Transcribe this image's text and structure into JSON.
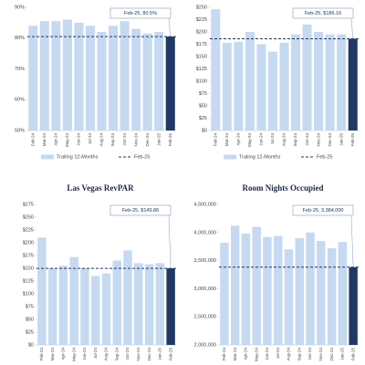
{
  "chart_data": [
    {
      "type": "bar",
      "categories": [
        "Feb-24",
        "Mar-24",
        "Apr-24",
        "May-24",
        "Jun-24",
        "Jul-24",
        "Aug-24",
        "Sep-24",
        "Oct-24",
        "Nov-24",
        "Dec-24",
        "Jan-25",
        "Feb-25"
      ],
      "series": [
        {
          "name": "Trailing 12-Months",
          "color": "#c5d9f1",
          "highlight_color": "#1f3864",
          "values": [
            84,
            85.5,
            85.5,
            86,
            85,
            84,
            82,
            84,
            85.5,
            83,
            81.5,
            82,
            80.5
          ]
        }
      ],
      "reference": {
        "name": "Feb-25",
        "value": 80.5,
        "color": "#1f3864"
      },
      "annotation": "Feb-25, 80.5%",
      "ylim": [
        50,
        90
      ],
      "yticks": [
        {
          "value": 50,
          "label": "50%"
        },
        {
          "value": 60,
          "label": "60%"
        },
        {
          "value": 70,
          "label": "70%"
        },
        {
          "value": 80,
          "label": "80%"
        },
        {
          "value": 90,
          "label": "90%"
        }
      ],
      "legend": true
    },
    {
      "type": "bar",
      "categories": [
        "Feb-24",
        "Mar-24",
        "Apr-24",
        "May-24",
        "Jun-24",
        "Jul-24",
        "Aug-24",
        "Sep-24",
        "Oct-24",
        "Nov-24",
        "Dec-24",
        "Jan-25",
        "Feb-25"
      ],
      "series": [
        {
          "name": "Trailing 12-Months",
          "color": "#c5d9f1",
          "highlight_color": "#1f3864",
          "values": [
            246,
            178,
            180,
            200,
            175,
            160,
            178,
            195,
            215,
            200,
            195,
            195,
            186.16
          ]
        }
      ],
      "reference": {
        "name": "Feb-25",
        "value": 186.16,
        "color": "#1f3864"
      },
      "annotation": "Feb-25, $186.16",
      "ylim": [
        0,
        250
      ],
      "yticks": [
        {
          "value": 0,
          "label": "$0"
        },
        {
          "value": 25,
          "label": "$25"
        },
        {
          "value": 50,
          "label": "$50"
        },
        {
          "value": 75,
          "label": "$75"
        },
        {
          "value": 100,
          "label": "$100"
        },
        {
          "value": 125,
          "label": "$125"
        },
        {
          "value": 150,
          "label": "$150"
        },
        {
          "value": 175,
          "label": "$175"
        },
        {
          "value": 200,
          "label": "$200"
        },
        {
          "value": 225,
          "label": "$225"
        },
        {
          "value": 250,
          "label": "$250"
        }
      ],
      "legend": true
    },
    {
      "type": "bar",
      "title": "Las Vegas RevPAR",
      "categories": [
        "Feb-24",
        "Mar-24",
        "Apr-24",
        "May-24",
        "Jun-24",
        "Jul-24",
        "Aug-24",
        "Sep-24",
        "Oct-24",
        "Nov-24",
        "Dec-24",
        "Jan-25",
        "Feb-25"
      ],
      "series": [
        {
          "color": "#c5d9f1",
          "highlight_color": "#1f3864",
          "values": [
            210,
            150,
            155,
            172,
            150,
            135,
            140,
            165,
            185,
            160,
            158,
            160,
            149.86
          ]
        }
      ],
      "reference": {
        "value": 149.86,
        "color": "#1f3864"
      },
      "annotation": "Feb-25, $149.86",
      "ylim": [
        0,
        275
      ],
      "yticks": [
        {
          "value": 0,
          "label": "$0"
        },
        {
          "value": 25,
          "label": "$25"
        },
        {
          "value": 50,
          "label": "$50"
        },
        {
          "value": 75,
          "label": "$75"
        },
        {
          "value": 100,
          "label": "$100"
        },
        {
          "value": 125,
          "label": "$125"
        },
        {
          "value": 150,
          "label": "$150"
        },
        {
          "value": 175,
          "label": "$175"
        },
        {
          "value": 200,
          "label": "$200"
        },
        {
          "value": 225,
          "label": "$225"
        },
        {
          "value": 250,
          "label": "$250"
        },
        {
          "value": 275,
          "label": "$275"
        }
      ],
      "legend": false
    },
    {
      "type": "bar",
      "title": "Room Nights Occupied",
      "categories": [
        "Feb-24",
        "Mar-24",
        "Apr-24",
        "May-24",
        "Jun-24",
        "Jul-24",
        "Aug-24",
        "Sep-24",
        "Oct-24",
        "Nov-24",
        "Dec-24",
        "Jan-25",
        "Feb-25"
      ],
      "series": [
        {
          "color": "#c5d9f1",
          "highlight_color": "#1f3864",
          "values": [
            3820000,
            4120000,
            3980000,
            4100000,
            3920000,
            3940000,
            3700000,
            3900000,
            4000000,
            3850000,
            3720000,
            3830000,
            3384000
          ]
        }
      ],
      "reference": {
        "value": 3384000,
        "color": "#1f3864"
      },
      "annotation": "Feb-25, 3,384,000",
      "ylim": [
        2000000,
        4500000
      ],
      "yticks": [
        {
          "value": 2000000,
          "label": "2,000,000"
        },
        {
          "value": 2500000,
          "label": "2,500,000"
        },
        {
          "value": 3000000,
          "label": "3,000,000"
        },
        {
          "value": 3500000,
          "label": "3,500,000"
        },
        {
          "value": 4000000,
          "label": "4,000,000"
        },
        {
          "value": 4500000,
          "label": "4,500,000"
        }
      ],
      "legend": false
    }
  ]
}
